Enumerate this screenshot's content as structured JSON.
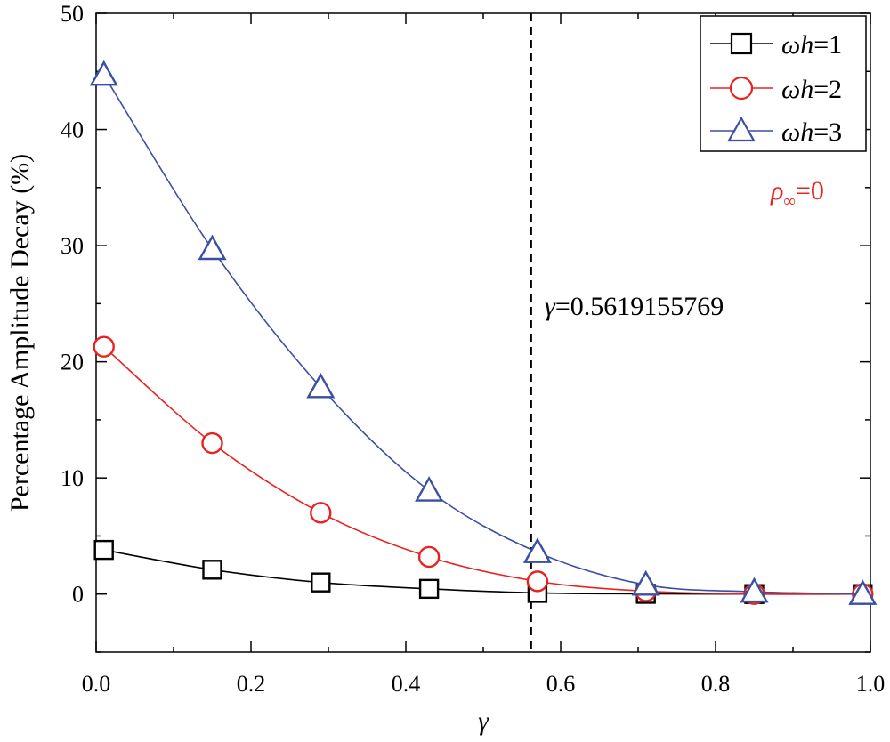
{
  "chart_data": {
    "type": "line",
    "title": "",
    "xlabel": "γ",
    "ylabel": "Percentage Amplitude Decay (%)",
    "xlim": [
      0.0,
      1.0
    ],
    "ylim": [
      -5,
      50
    ],
    "xticks": [
      0.0,
      0.2,
      0.4,
      0.6,
      0.8,
      1.0
    ],
    "xtick_labels": [
      "0.0",
      "0.2",
      "0.4",
      "0.6",
      "0.8",
      "1.0"
    ],
    "yticks": [
      0,
      10,
      20,
      30,
      40,
      50
    ],
    "ytick_labels": [
      "0",
      "10",
      "20",
      "30",
      "40",
      "50"
    ],
    "grid": false,
    "legend_position": "top-right",
    "series": [
      {
        "name": "ωh=1",
        "legend_symbol": "ω",
        "legend_var": "h",
        "legend_value": "=1",
        "color": "#000000",
        "marker": "square",
        "x": [
          0.01,
          0.15,
          0.29,
          0.43,
          0.57,
          0.71,
          0.85,
          0.99
        ],
        "y": [
          3.8,
          2.1,
          1.0,
          0.45,
          0.1,
          0.02,
          0.0,
          0.0
        ]
      },
      {
        "name": "ωh=2",
        "legend_symbol": "ω",
        "legend_var": "h",
        "legend_value": "=2",
        "color": "#e8231f",
        "marker": "circle",
        "x": [
          0.01,
          0.15,
          0.29,
          0.43,
          0.57,
          0.71,
          0.85,
          0.99
        ],
        "y": [
          21.3,
          13.0,
          7.0,
          3.2,
          1.1,
          0.25,
          0.0,
          0.0
        ]
      },
      {
        "name": "ωh=3",
        "legend_symbol": "ω",
        "legend_var": "h",
        "legend_value": "=3",
        "color": "#3b4fa3",
        "marker": "triangle",
        "x": [
          0.01,
          0.15,
          0.29,
          0.43,
          0.57,
          0.71,
          0.85,
          0.99
        ],
        "y": [
          44.7,
          29.7,
          17.8,
          8.9,
          3.6,
          0.8,
          0.2,
          0.0
        ]
      }
    ],
    "vertical_line": {
      "x": 0.5619155769,
      "style": "dashed",
      "color": "#000000"
    },
    "annotations": [
      {
        "symbol": "γ",
        "text": "=0.5619155769",
        "color": "#000000"
      },
      {
        "symbol": "ρ",
        "subscript": "∞",
        "text": "=0",
        "color": "#e8231f"
      }
    ]
  }
}
